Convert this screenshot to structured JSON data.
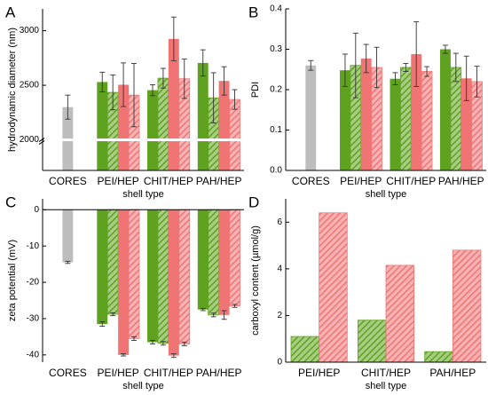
{
  "chart_data": [
    {
      "type": "bar",
      "panel": "A",
      "ylabel": "hydrodynamic diameter (nm)",
      "xlabel": "shell type",
      "axis_break": true,
      "categories": [
        "CORES",
        "PEI/HEP",
        "CHIT/HEP",
        "PAH/HEP"
      ],
      "ylim": [
        1720,
        3200
      ],
      "yticks": [
        2000,
        2500,
        3000
      ],
      "series": [
        {
          "color": "#bdbdbd",
          "hatch": false,
          "values": [
            2300,
            null,
            null,
            null
          ],
          "errors": [
            110,
            null,
            null,
            null
          ]
        },
        {
          "color": "#5fa21f",
          "hatch": false,
          "values": [
            null,
            2530,
            2455,
            2705
          ],
          "errors": [
            null,
            90,
            50,
            120
          ]
        },
        {
          "color": "#5fa21f",
          "hatch": true,
          "values": [
            null,
            2435,
            2565,
            2385
          ],
          "errors": [
            null,
            160,
            90,
            230
          ]
        },
        {
          "color": "#f07474",
          "hatch": false,
          "values": [
            null,
            2505,
            2925,
            2540
          ],
          "errors": [
            null,
            200,
            200,
            130
          ]
        },
        {
          "color": "#f07474",
          "hatch": true,
          "values": [
            null,
            2410,
            2560,
            2370
          ],
          "errors": [
            null,
            290,
            180,
            90
          ]
        }
      ]
    },
    {
      "type": "bar",
      "panel": "B",
      "ylabel": "PDI",
      "xlabel": "shell type",
      "categories": [
        "CORES",
        "PEI/HEP",
        "CHIT/HEP",
        "PAH/HEP"
      ],
      "ylim": [
        0,
        0.4
      ],
      "yticks": [
        {
          "value": 0,
          "label": "0.0"
        },
        0.1,
        0.2,
        0.3,
        0.4
      ],
      "series": [
        {
          "color": "#bdbdbd",
          "hatch": false,
          "values": [
            0.26,
            null,
            null,
            null
          ],
          "errors": [
            0.012,
            null,
            null,
            null
          ]
        },
        {
          "color": "#5fa21f",
          "hatch": false,
          "values": [
            null,
            0.248,
            0.227,
            0.3
          ],
          "errors": [
            null,
            0.04,
            0.015,
            0.01
          ]
        },
        {
          "color": "#5fa21f",
          "hatch": true,
          "values": [
            null,
            0.26,
            0.255,
            0.255
          ],
          "errors": [
            null,
            0.08,
            0.01,
            0.035
          ]
        },
        {
          "color": "#f07474",
          "hatch": false,
          "values": [
            null,
            0.277,
            0.288,
            0.228
          ],
          "errors": [
            null,
            0.035,
            0.08,
            0.055
          ]
        },
        {
          "color": "#f07474",
          "hatch": true,
          "values": [
            null,
            0.255,
            0.245,
            0.22
          ],
          "errors": [
            null,
            0.05,
            0.012,
            0.038
          ]
        }
      ]
    },
    {
      "type": "bar",
      "panel": "C",
      "ylabel": "zeta potential (mV)",
      "xlabel": "shell type",
      "categories": [
        "CORES",
        "PEI/HEP",
        "CHIT/HEP",
        "PAH/HEP"
      ],
      "ylim": [
        -42,
        3
      ],
      "yticks": [
        0,
        -10,
        -20,
        -30,
        -40
      ],
      "series": [
        {
          "color": "#bdbdbd",
          "hatch": false,
          "values": [
            -14.5,
            null,
            null,
            null
          ],
          "errors": [
            0.3,
            null,
            null,
            null
          ]
        },
        {
          "color": "#5fa21f",
          "hatch": false,
          "values": [
            null,
            -31.5,
            -36.5,
            -27.5
          ],
          "errors": [
            null,
            0.6,
            0.5,
            0.3
          ]
        },
        {
          "color": "#5fa21f",
          "hatch": true,
          "values": [
            null,
            -28.8,
            -36.8,
            -29
          ],
          "errors": [
            null,
            0.4,
            0.5,
            0.5
          ]
        },
        {
          "color": "#f07474",
          "hatch": false,
          "values": [
            null,
            -40,
            -40.2,
            -29
          ],
          "errors": [
            null,
            0.3,
            0.5,
            1.2
          ]
        },
        {
          "color": "#f07474",
          "hatch": true,
          "values": [
            null,
            -35.5,
            -37,
            -26.5
          ],
          "errors": [
            null,
            0.5,
            0.5,
            0.4
          ]
        }
      ]
    },
    {
      "type": "bar",
      "panel": "D",
      "ylabel": "carboxyl content (µmol/g)",
      "xlabel": "shell type",
      "categories": [
        "PEI/HEP",
        "CHIT/HEP",
        "PAH/HEP"
      ],
      "ylim": [
        0,
        7
      ],
      "yticks": [
        0,
        2,
        4,
        6
      ],
      "series": [
        {
          "color": "#5fa21f",
          "hatch": true,
          "values": [
            1.1,
            1.8,
            0.45
          ]
        },
        {
          "color": "#f07474",
          "hatch": true,
          "values": [
            6.4,
            4.15,
            4.8
          ]
        }
      ]
    }
  ]
}
